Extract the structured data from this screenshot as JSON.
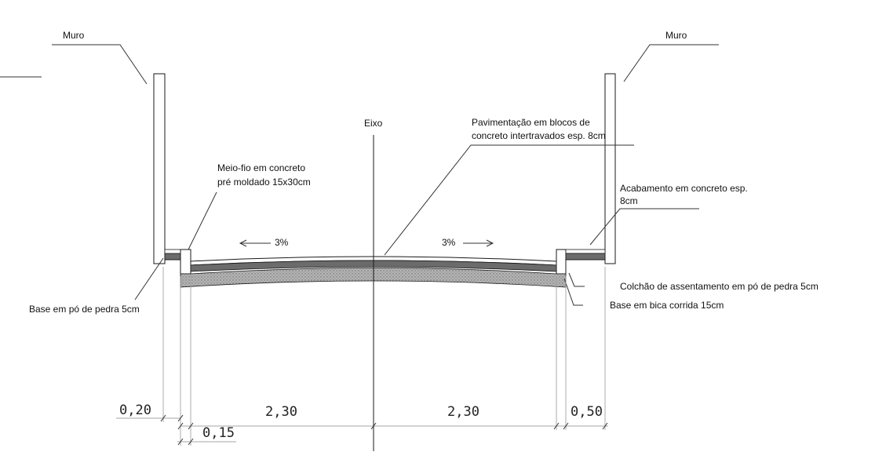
{
  "labels": {
    "muro_left": "Muro",
    "muro_right": "Muro",
    "eixo": "Eixo",
    "pavimentacao_1": "Pavimentação em blocos de",
    "pavimentacao_2": "concreto intertravados esp. 8cm",
    "meiofio_1": "Meio-fio em concreto",
    "meiofio_2": "pré moldado 15x30cm",
    "acabamento_1": "Acabamento em concreto esp.",
    "acabamento_2": "8cm",
    "slope_left": "3%",
    "slope_right": "3%",
    "colchao": "Colchão de assentamento em pó de pedra 5cm",
    "base_bica": "Base em bica corrida 15cm",
    "base_po": "Base em pó de pedra 5cm"
  },
  "dimensions": {
    "d1": "0,20",
    "d2": "0,15",
    "d3": "2,30",
    "d4": "2,30",
    "d5": "0,50"
  },
  "colors": {
    "line": "#1a1a1a",
    "dimline": "#9a9a9a",
    "base_fill": "#6b6b6b",
    "gravel_fill": "#a8a8a8"
  }
}
